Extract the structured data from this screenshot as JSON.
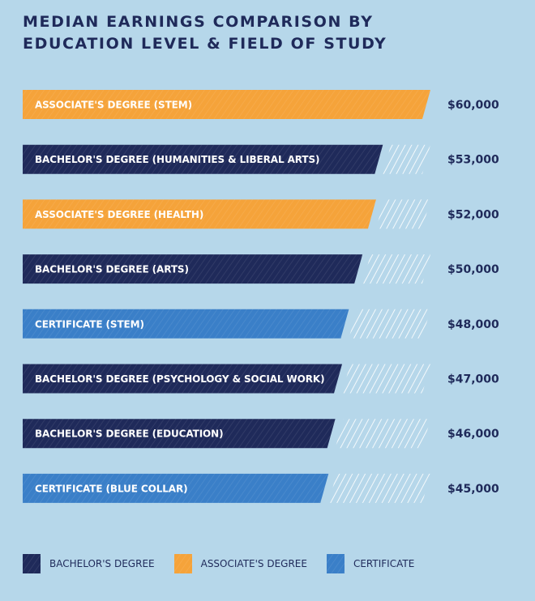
{
  "title_lines": [
    "MEDIAN EARNINGS COMPARISON BY",
    "EDUCATION LEVEL & FIELD OF STUDY"
  ],
  "colors": {
    "background": "#b6d7ea",
    "text": "#1f2a5a",
    "bachelor": "#1f2a5a",
    "associate": "#f5a33a",
    "certificate": "#3a7fc8",
    "hatch_empty": "#ffffff"
  },
  "chart_data": {
    "type": "bar",
    "orientation": "horizontal",
    "title": "MEDIAN EARNINGS COMPARISON BY EDUCATION LEVEL & FIELD OF STUDY",
    "xlim": [
      0,
      60000
    ],
    "categories": [
      "ASSOCIATE'S DEGREE (STEM)",
      "BACHELOR'S DEGREE (HUMANITIES & LIBERAL ARTS)",
      "ASSOCIATE'S DEGREE (HEALTH)",
      "BACHELOR'S DEGREE (ARTS)",
      "CERTIFICATE (STEM)",
      "BACHELOR'S DEGREE (PSYCHOLOGY & SOCIAL WORK)",
      "BACHELOR'S DEGREE (EDUCATION)",
      "CERTIFICATE (BLUE COLLAR)"
    ],
    "values": [
      60000,
      53000,
      52000,
      50000,
      48000,
      47000,
      46000,
      45000
    ],
    "value_labels": [
      "$60,000",
      "$53,000",
      "$52,000",
      "$50,000",
      "$48,000",
      "$47,000",
      "$46,000",
      "$45,000"
    ],
    "groups": [
      "associate",
      "bachelor",
      "associate",
      "bachelor",
      "certificate",
      "bachelor",
      "bachelor",
      "certificate"
    ],
    "legend": {
      "placement": "bottom",
      "items": [
        {
          "key": "bachelor",
          "label": "BACHELOR'S DEGREE"
        },
        {
          "key": "associate",
          "label": "ASSOCIATE'S DEGREE"
        },
        {
          "key": "certificate",
          "label": "CERTIFICATE"
        }
      ]
    },
    "grid": false
  }
}
